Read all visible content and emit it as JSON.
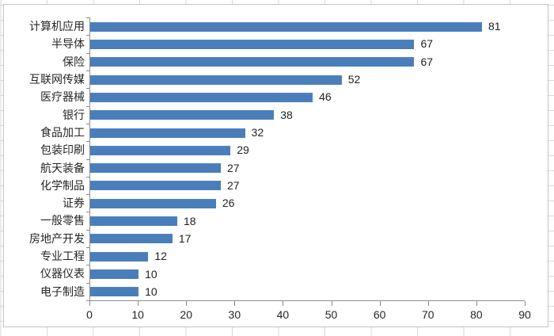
{
  "chart_data": {
    "type": "bar",
    "orientation": "horizontal",
    "title": "",
    "xlabel": "",
    "ylabel": "",
    "categories": [
      "计算机应用",
      "半导体",
      "保险",
      "互联网传媒",
      "医疗器械",
      "银行",
      "食品加工",
      "包装印刷",
      "航天装备",
      "化学制品",
      "证券",
      "一般零售",
      "房地产开发",
      "专业工程",
      "仪器仪表",
      "电子制造"
    ],
    "values": [
      81,
      67,
      67,
      52,
      46,
      38,
      32,
      29,
      27,
      27,
      26,
      18,
      17,
      12,
      10,
      10
    ],
    "data_labels": [
      81,
      67,
      67,
      52,
      46,
      38,
      32,
      29,
      27,
      27,
      26,
      18,
      17,
      12,
      10,
      10
    ],
    "x_ticks": [
      0,
      10,
      20,
      30,
      40,
      50,
      60,
      70,
      80,
      90
    ],
    "xlim": [
      0,
      90
    ],
    "grid": false,
    "legend": false,
    "bar_color": "#4a7ebb",
    "axis_color": "#8c8c8c",
    "text_color": "#262626"
  }
}
